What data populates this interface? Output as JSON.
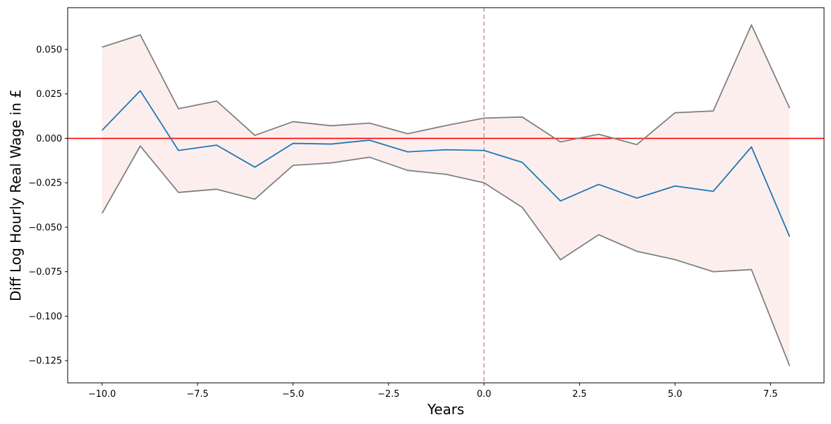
{
  "chart_data": {
    "type": "line",
    "title": "",
    "xlabel": "Years",
    "ylabel": "Diff Log Hourly Real Wage in £",
    "xlim": [
      -10.9,
      8.9
    ],
    "ylim": [
      -0.1375,
      0.0735
    ],
    "x_ticks": [
      -10.0,
      -7.5,
      -5.0,
      -2.5,
      0.0,
      2.5,
      5.0,
      7.5
    ],
    "x_tick_labels": [
      "−10.0",
      "−7.5",
      "−5.0",
      "−2.5",
      "0.0",
      "2.5",
      "5.0",
      "7.5"
    ],
    "y_ticks": [
      0.05,
      0.025,
      0.0,
      -0.025,
      -0.05,
      -0.075,
      -0.1,
      -0.125
    ],
    "y_tick_labels": [
      "0.050",
      "0.025",
      "0.000",
      "−0.025",
      "−0.050",
      "−0.075",
      "−0.100",
      "−0.125"
    ],
    "grid": false,
    "x": [
      -10,
      -9,
      -8,
      -7,
      -6,
      -5,
      -4,
      -3,
      -2,
      -1,
      0,
      1,
      2,
      3,
      4,
      5,
      6,
      7,
      8
    ],
    "series": [
      {
        "role": "estimate",
        "color": "#1f77b4",
        "values": [
          0.0045,
          0.0268,
          -0.0068,
          -0.0038,
          -0.0162,
          -0.0028,
          -0.0032,
          -0.001,
          -0.0076,
          -0.0064,
          -0.0068,
          -0.0135,
          -0.0352,
          -0.0259,
          -0.0336,
          -0.0268,
          -0.0298,
          -0.0048,
          -0.0553
        ]
      },
      {
        "role": "upper_bound",
        "color": "#808080",
        "values": [
          0.0513,
          0.0582,
          0.0167,
          0.021,
          0.0017,
          0.0094,
          0.0071,
          0.0086,
          0.0026,
          0.0072,
          0.0114,
          0.012,
          -0.002,
          0.0023,
          -0.0035,
          0.0144,
          0.0154,
          0.0638,
          0.017
        ]
      },
      {
        "role": "lower_bound",
        "color": "#808080",
        "values": [
          -0.0422,
          -0.0043,
          -0.0304,
          -0.0286,
          -0.0342,
          -0.0152,
          -0.0138,
          -0.0106,
          -0.018,
          -0.0202,
          -0.025,
          -0.0388,
          -0.0683,
          -0.0542,
          -0.0635,
          -0.0682,
          -0.075,
          -0.0738,
          -0.128
        ]
      }
    ],
    "band_color": "#fdeeee",
    "reference_lines": [
      {
        "orientation": "horizontal",
        "value": 0.0,
        "color": "#ff0000",
        "style": "solid"
      },
      {
        "orientation": "vertical",
        "value": 0.0,
        "color": "#c88080",
        "style": "dashed"
      }
    ]
  }
}
